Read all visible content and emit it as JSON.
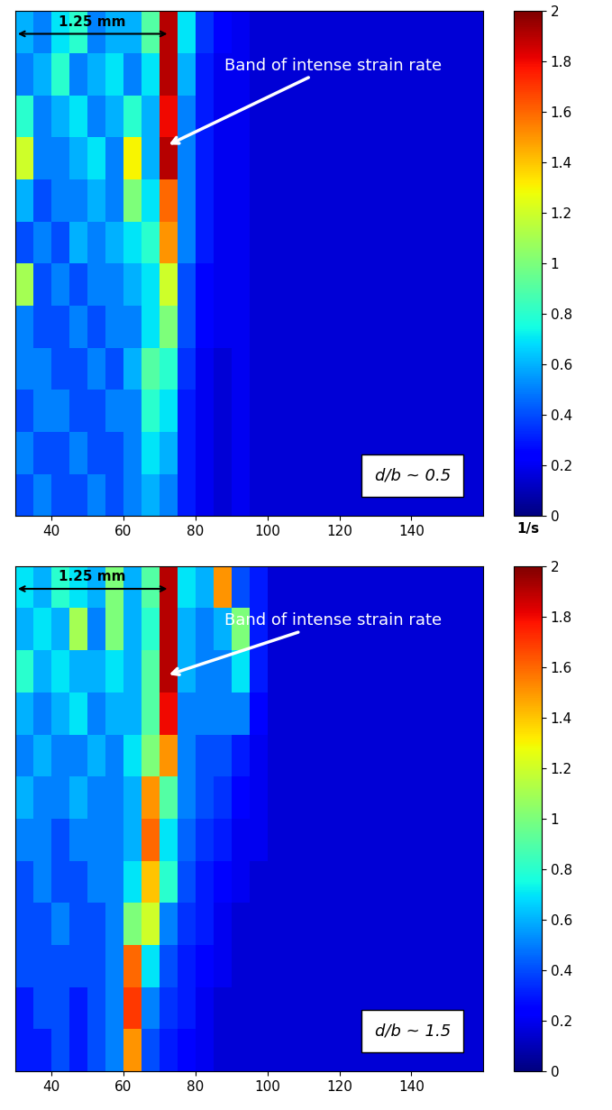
{
  "chart_data": [
    {
      "type": "heatmap",
      "xlim": [
        30,
        160
      ],
      "xticks": [
        40,
        60,
        80,
        100,
        120,
        140
      ],
      "tick_labels": "x",
      "colorbar_range": [
        0,
        2
      ],
      "colorbar_ticks": [
        0,
        0.2,
        0.4,
        0.6,
        0.8,
        1,
        1.2,
        1.4,
        1.6,
        1.8,
        2
      ],
      "colorbar_label": "1/s",
      "scale_label": "1.25 mm",
      "annotation": "Band of intense strain rate",
      "box_label": "d/b ~ 0.5",
      "cells": [
        [
          0.6,
          0.5,
          0.7,
          0.8,
          0.5,
          0.6,
          0.6,
          0.9,
          1.9,
          0.7,
          0.35,
          0.25,
          0.2,
          0.15,
          0.15,
          0.15,
          0.15,
          0.15,
          0.15,
          0.15,
          0.15,
          0.15,
          0.15,
          0.15,
          0.15,
          0.15
        ],
        [
          0.5,
          0.6,
          0.8,
          0.5,
          0.6,
          0.7,
          0.5,
          0.7,
          1.9,
          0.6,
          0.3,
          0.2,
          0.2,
          0.15,
          0.15,
          0.15,
          0.15,
          0.15,
          0.15,
          0.15,
          0.15,
          0.15,
          0.15,
          0.15,
          0.15,
          0.15
        ],
        [
          0.8,
          0.5,
          0.6,
          0.7,
          0.5,
          0.6,
          0.8,
          0.6,
          1.8,
          0.5,
          0.3,
          0.2,
          0.2,
          0.15,
          0.15,
          0.15,
          0.15,
          0.15,
          0.15,
          0.15,
          0.15,
          0.15,
          0.15,
          0.15,
          0.15,
          0.15
        ],
        [
          1.2,
          0.5,
          0.5,
          0.6,
          0.7,
          0.5,
          1.3,
          0.6,
          1.9,
          0.5,
          0.3,
          0.2,
          0.2,
          0.15,
          0.15,
          0.15,
          0.15,
          0.15,
          0.15,
          0.15,
          0.15,
          0.15,
          0.15,
          0.15,
          0.15,
          0.15
        ],
        [
          0.6,
          0.4,
          0.5,
          0.5,
          0.6,
          0.5,
          1.0,
          0.7,
          1.6,
          0.5,
          0.3,
          0.2,
          0.2,
          0.15,
          0.15,
          0.15,
          0.15,
          0.15,
          0.15,
          0.15,
          0.15,
          0.15,
          0.15,
          0.15,
          0.15,
          0.15
        ],
        [
          0.4,
          0.5,
          0.4,
          0.6,
          0.5,
          0.6,
          0.7,
          0.8,
          1.5,
          0.5,
          0.3,
          0.2,
          0.2,
          0.15,
          0.15,
          0.15,
          0.15,
          0.15,
          0.15,
          0.15,
          0.15,
          0.15,
          0.15,
          0.15,
          0.15,
          0.15
        ],
        [
          1.1,
          0.4,
          0.5,
          0.4,
          0.5,
          0.5,
          0.6,
          0.7,
          1.2,
          0.4,
          0.25,
          0.2,
          0.2,
          0.15,
          0.15,
          0.15,
          0.15,
          0.15,
          0.15,
          0.15,
          0.15,
          0.15,
          0.15,
          0.15,
          0.15,
          0.15
        ],
        [
          0.5,
          0.4,
          0.4,
          0.5,
          0.4,
          0.5,
          0.5,
          0.7,
          1.0,
          0.4,
          0.25,
          0.2,
          0.2,
          0.15,
          0.15,
          0.15,
          0.15,
          0.15,
          0.15,
          0.15,
          0.15,
          0.15,
          0.15,
          0.15,
          0.15,
          0.15
        ],
        [
          0.5,
          0.5,
          0.4,
          0.4,
          0.5,
          0.4,
          0.6,
          0.9,
          0.8,
          0.35,
          0.2,
          0.15,
          0.2,
          0.15,
          0.15,
          0.15,
          0.15,
          0.15,
          0.15,
          0.15,
          0.15,
          0.15,
          0.15,
          0.15,
          0.15,
          0.15
        ],
        [
          0.4,
          0.5,
          0.5,
          0.4,
          0.4,
          0.5,
          0.5,
          0.8,
          0.7,
          0.3,
          0.2,
          0.15,
          0.2,
          0.15,
          0.15,
          0.15,
          0.15,
          0.15,
          0.15,
          0.15,
          0.15,
          0.15,
          0.15,
          0.15,
          0.15,
          0.15
        ],
        [
          0.5,
          0.4,
          0.4,
          0.5,
          0.4,
          0.4,
          0.5,
          0.7,
          0.6,
          0.3,
          0.2,
          0.15,
          0.2,
          0.15,
          0.15,
          0.15,
          0.15,
          0.15,
          0.15,
          0.15,
          0.15,
          0.15,
          0.15,
          0.15,
          0.15,
          0.15
        ],
        [
          0.4,
          0.5,
          0.4,
          0.4,
          0.5,
          0.4,
          0.5,
          0.6,
          0.5,
          0.3,
          0.2,
          0.15,
          0.2,
          0.15,
          0.15,
          0.15,
          0.15,
          0.15,
          0.15,
          0.15,
          0.15,
          0.15,
          0.15,
          0.15,
          0.15,
          0.15
        ]
      ]
    },
    {
      "type": "heatmap",
      "xlim": [
        30,
        160
      ],
      "xticks": [
        40,
        60,
        80,
        100,
        120,
        140
      ],
      "tick_labels": "x",
      "colorbar_range": [
        0,
        2
      ],
      "colorbar_ticks": [
        0,
        0.2,
        0.4,
        0.6,
        0.8,
        1,
        1.2,
        1.4,
        1.6,
        1.8,
        2
      ],
      "scale_label": "1.25 mm",
      "annotation": "Band of intense strain rate",
      "box_label": "d/b ~ 1.5",
      "cells": [
        [
          0.7,
          0.6,
          0.8,
          0.7,
          0.6,
          1.0,
          0.6,
          0.9,
          1.9,
          0.7,
          0.6,
          1.5,
          0.4,
          0.3,
          0.15,
          0.15,
          0.15,
          0.15,
          0.15,
          0.15,
          0.15,
          0.15,
          0.15,
          0.15,
          0.15,
          0.15
        ],
        [
          0.6,
          0.7,
          0.6,
          1.1,
          0.5,
          1.0,
          0.6,
          0.8,
          1.9,
          0.6,
          0.5,
          0.6,
          1.0,
          0.3,
          0.15,
          0.15,
          0.15,
          0.15,
          0.15,
          0.15,
          0.15,
          0.15,
          0.15,
          0.15,
          0.15,
          0.15
        ],
        [
          0.8,
          0.6,
          0.7,
          0.6,
          0.6,
          0.7,
          0.6,
          0.9,
          1.9,
          0.6,
          0.5,
          0.5,
          0.7,
          0.3,
          0.15,
          0.15,
          0.15,
          0.15,
          0.15,
          0.15,
          0.15,
          0.15,
          0.15,
          0.15,
          0.15,
          0.15
        ],
        [
          0.6,
          0.5,
          0.6,
          0.7,
          0.5,
          0.6,
          0.6,
          0.9,
          1.8,
          0.5,
          0.5,
          0.5,
          0.5,
          0.25,
          0.15,
          0.15,
          0.15,
          0.15,
          0.15,
          0.15,
          0.15,
          0.15,
          0.15,
          0.15,
          0.15,
          0.15
        ],
        [
          0.5,
          0.6,
          0.5,
          0.5,
          0.6,
          0.5,
          0.7,
          1.0,
          1.5,
          0.5,
          0.4,
          0.4,
          0.3,
          0.2,
          0.15,
          0.15,
          0.15,
          0.15,
          0.15,
          0.15,
          0.15,
          0.15,
          0.15,
          0.15,
          0.15,
          0.15
        ],
        [
          0.6,
          0.5,
          0.5,
          0.6,
          0.5,
          0.5,
          0.6,
          1.5,
          0.9,
          0.5,
          0.4,
          0.35,
          0.25,
          0.2,
          0.15,
          0.15,
          0.15,
          0.15,
          0.15,
          0.15,
          0.15,
          0.15,
          0.15,
          0.15,
          0.15,
          0.15
        ],
        [
          0.5,
          0.5,
          0.4,
          0.5,
          0.5,
          0.5,
          0.6,
          1.6,
          0.7,
          0.45,
          0.35,
          0.3,
          0.2,
          0.2,
          0.15,
          0.15,
          0.15,
          0.15,
          0.15,
          0.15,
          0.15,
          0.15,
          0.15,
          0.15,
          0.15,
          0.15
        ],
        [
          0.4,
          0.5,
          0.4,
          0.4,
          0.5,
          0.5,
          0.7,
          1.4,
          0.8,
          0.4,
          0.3,
          0.25,
          0.2,
          0.15,
          0.15,
          0.15,
          0.15,
          0.15,
          0.15,
          0.15,
          0.15,
          0.15,
          0.15,
          0.15,
          0.15,
          0.15
        ],
        [
          0.4,
          0.4,
          0.5,
          0.4,
          0.4,
          0.5,
          1.0,
          1.2,
          0.5,
          0.35,
          0.3,
          0.2,
          0.15,
          0.15,
          0.15,
          0.15,
          0.15,
          0.15,
          0.15,
          0.15,
          0.15,
          0.15,
          0.15,
          0.15,
          0.15,
          0.15
        ],
        [
          0.4,
          0.4,
          0.4,
          0.4,
          0.4,
          0.5,
          1.6,
          0.7,
          0.4,
          0.3,
          0.25,
          0.2,
          0.15,
          0.15,
          0.15,
          0.15,
          0.15,
          0.15,
          0.15,
          0.15,
          0.15,
          0.15,
          0.15,
          0.15,
          0.15,
          0.15
        ],
        [
          0.3,
          0.4,
          0.4,
          0.3,
          0.4,
          0.5,
          1.7,
          0.5,
          0.35,
          0.3,
          0.2,
          0.15,
          0.15,
          0.15,
          0.15,
          0.15,
          0.15,
          0.15,
          0.15,
          0.15,
          0.15,
          0.15,
          0.15,
          0.15,
          0.15,
          0.15
        ],
        [
          0.3,
          0.3,
          0.4,
          0.3,
          0.4,
          0.5,
          1.5,
          0.4,
          0.3,
          0.25,
          0.2,
          0.15,
          0.15,
          0.15,
          0.15,
          0.15,
          0.15,
          0.15,
          0.15,
          0.15,
          0.15,
          0.15,
          0.15,
          0.15,
          0.15,
          0.15
        ]
      ]
    }
  ]
}
